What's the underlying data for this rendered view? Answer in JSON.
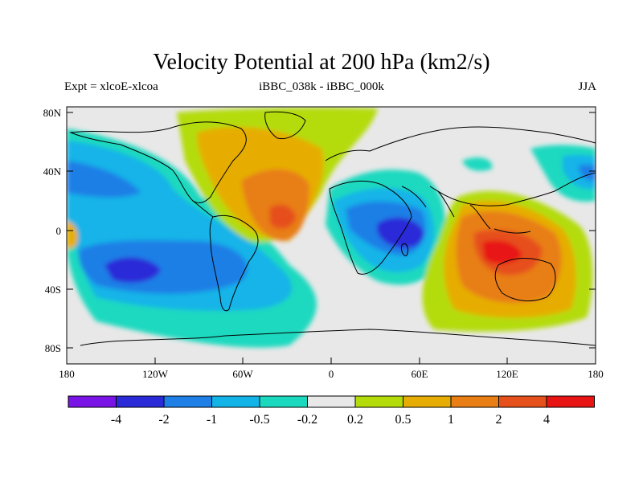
{
  "title": "Velocity Potential at 200 hPa (km2/s)",
  "left_subtitle": "Expt = xlcoE-xlcoa",
  "center_subtitle": "iBBC_038k - iBBC_000k",
  "right_subtitle": "JJA",
  "lat_labels": [
    "80N",
    "40N",
    "0",
    "40S",
    "80S"
  ],
  "lon_labels": [
    "180",
    "120W",
    "60W",
    "0",
    "60E",
    "120E",
    "180"
  ],
  "colorbar": {
    "colors": [
      "#7a14e6",
      "#2a2ad8",
      "#1e7fe6",
      "#12b4e8",
      "#1ad9bf",
      "#e8e8e8",
      "#b4dc0a",
      "#e6ad05",
      "#e87e14",
      "#e6501a",
      "#e81414"
    ],
    "labels": [
      "-4",
      "-2",
      "-1",
      "-0.5",
      "-0.2",
      "0.2",
      "0.5",
      "1",
      "2",
      "4"
    ]
  }
}
